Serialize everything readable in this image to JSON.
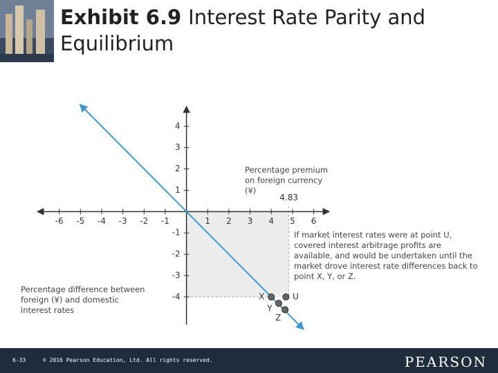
{
  "header": {
    "exhibit": "Exhibit 6.9",
    "title": "Interest Rate Parity and Equilibrium"
  },
  "chart_data": {
    "type": "line",
    "ylabel": "Percentage premium on foreign currency (¥)",
    "xlabel": "Percentage difference between foreign (¥) and domestic interest rates",
    "annotation": "If market interest rates were at point U, covered interest arbitrage profits are available, and would be undertaken until the market drove interest rate differences back to point X, Y, or Z.",
    "marker_x": 4.83,
    "xlim": [
      -7,
      6.7
    ],
    "ylim": [
      -5.3,
      4.9
    ],
    "xticks": [
      -6,
      -5,
      -4,
      -3,
      -2,
      -1,
      1,
      2,
      3,
      4,
      5,
      6
    ],
    "yticks": [
      -4,
      -3,
      -2,
      -1,
      1,
      2,
      3,
      4
    ],
    "series": [
      {
        "color": "#3d9ad1",
        "x": [
          -5,
          5.5
        ],
        "values": [
          5,
          -5.5
        ]
      }
    ],
    "points": [
      {
        "name": "X",
        "x": 4,
        "y": -4
      },
      {
        "name": "U",
        "x": 4.69,
        "y": -4
      },
      {
        "name": "Y",
        "x": 4.35,
        "y": -4.3
      },
      {
        "name": "Z",
        "x": 4.65,
        "y": -4.6
      }
    ]
  },
  "footer": {
    "page": "6-33",
    "copyright": "© 2016 Pearson Education, Ltd. All rights reserved.",
    "brand": "PEARSON"
  }
}
